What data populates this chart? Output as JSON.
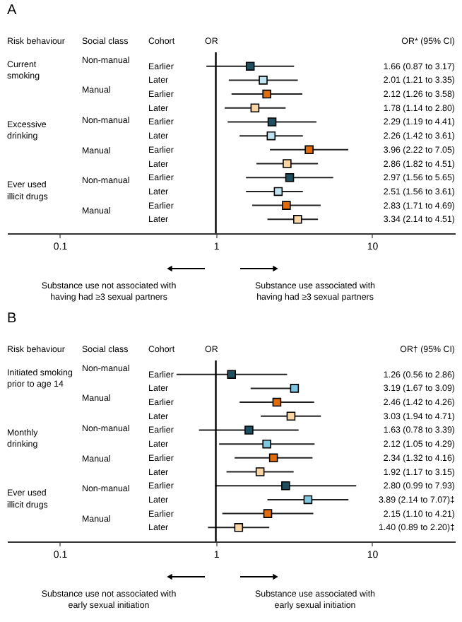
{
  "chart_data": [
    {
      "type": "scatter",
      "title": "A",
      "xlabel": "OR",
      "orientation": "horizontal",
      "log": "x",
      "marker": "square",
      "grid": false,
      "categories": [
        "Earlier",
        "Later",
        "Earlier",
        "Later",
        "Earlier",
        "Later",
        "Earlier",
        "Later",
        "Earlier",
        "Later",
        "Earlier",
        "Later"
      ],
      "values": [
        1.66,
        2.01,
        2.12,
        1.78,
        2.29,
        2.26,
        3.96,
        2.86,
        2.97,
        2.51,
        2.83,
        3.34
      ],
      "errors": [
        [
          0.87,
          3.17
        ],
        [
          1.21,
          3.35
        ],
        [
          1.26,
          3.58
        ],
        [
          1.14,
          2.8
        ],
        [
          1.19,
          4.41
        ],
        [
          1.42,
          3.61
        ],
        [
          2.22,
          7.05
        ],
        [
          1.82,
          4.51
        ],
        [
          1.56,
          5.65
        ],
        [
          1.56,
          3.61
        ],
        [
          1.71,
          4.69
        ],
        [
          2.14,
          4.51
        ]
      ],
      "colors": [
        "#1f4e5f",
        "#bfe3f0",
        "#e36c0a",
        "#fcd5a5",
        "#1f4e5f",
        "#bfe3f0",
        "#e36c0a",
        "#fcd5a5",
        "#1f4e5f",
        "#bfe3f0",
        "#e36c0a",
        "#fcd5a5"
      ],
      "xlim": [
        0.046,
        34
      ],
      "xticks": [
        0.1,
        1,
        10
      ],
      "ref_lines": [
        {
          "axis": "x",
          "value": 1,
          "color": "#000000"
        }
      ],
      "annotations": [
        "Risk behaviour",
        "Social class",
        "Cohort",
        "OR* (95% CI)",
        "Current\nsmoking",
        "Excessive\ndrinking",
        "Ever used\nillicit drugs",
        "Non-manual",
        "Manual",
        "Non-manual",
        "Manual",
        "Non-manual",
        "Manual",
        "Substance use not associated with\nhaving had ≥3 sexual partners",
        "Substance use associated with\nhaving had ≥3 sexual partners",
        "1.66 (0.87 to 3.17)",
        "2.01 (1.21 to 3.35)",
        "2.12 (1.26 to 3.58)",
        "1.78 (1.14 to 2.80)",
        "2.29 (1.19 to 4.41)",
        "2.26 (1.42 to 3.61)",
        "3.96 (2.22 to 7.05)",
        "2.86 (1.82 to 4.51)",
        "2.97 (1.56 to 5.65)",
        "2.51 (1.56 to 3.61)",
        "2.83 (1.71 to 4.69)",
        "3.34 (2.14 to 4.51)"
      ]
    },
    {
      "type": "scatter",
      "title": "B",
      "xlabel": "OR",
      "orientation": "horizontal",
      "log": "x",
      "marker": "square",
      "grid": false,
      "categories": [
        "Earlier",
        "Later",
        "Earlier",
        "Later",
        "Earlier",
        "Later",
        "Earlier",
        "Later",
        "Earlier",
        "Later",
        "Earlier",
        "Later"
      ],
      "values": [
        1.26,
        3.19,
        2.46,
        3.03,
        1.63,
        2.12,
        2.34,
        1.92,
        2.8,
        3.89,
        2.15,
        1.4
      ],
      "errors": [
        [
          0.56,
          2.86
        ],
        [
          1.67,
          3.09
        ],
        [
          1.42,
          4.26
        ],
        [
          1.94,
          4.71
        ],
        [
          0.78,
          3.39
        ],
        [
          1.05,
          4.29
        ],
        [
          1.32,
          4.16
        ],
        [
          1.17,
          3.15
        ],
        [
          0.99,
          7.93
        ],
        [
          2.14,
          7.07
        ],
        [
          1.1,
          4.21
        ],
        [
          0.89,
          2.2
        ]
      ],
      "colors": [
        "#1f4e5f",
        "#7fc6e0",
        "#e36c0a",
        "#fcd5a5",
        "#1f4e5f",
        "#7fc6e0",
        "#e36c0a",
        "#fcd5a5",
        "#1f4e5f",
        "#7fc6e0",
        "#e36c0a",
        "#fcd5a5"
      ],
      "xlim": [
        0.046,
        34
      ],
      "xticks": [
        0.1,
        1,
        10
      ],
      "ref_lines": [
        {
          "axis": "x",
          "value": 1,
          "color": "#000000"
        }
      ],
      "annotations": [
        "Risk behaviour",
        "Social class",
        "Cohort",
        "OR† (95% CI)",
        "Initiated smoking\nprior to age 14",
        "Monthly\ndrinking",
        "Ever used\nillicit drugs",
        "Non-manual",
        "Manual",
        "Non-manual",
        "Manual",
        "Non-manual",
        "Manual",
        "Substance use not associated with\nearly sexual initiation",
        "Substance use associated with\nearly sexual initiation",
        "1.26 (0.56 to 2.86)",
        "3.19 (1.67 to 3.09)",
        "2.46 (1.42 to 4.26)",
        "3.03 (1.94 to 4.71)",
        "1.63 (0.78 to 3.39)",
        "2.12 (1.05 to 4.29)",
        "2.34 (1.32 to 4.16)",
        "1.92 (1.17 to 3.15)",
        "2.80 (0.99 to 7.93)",
        "3.89 (2.14 to 7.07)‡",
        "2.15 (1.10 to 4.21)",
        "1.40 (0.89 to 2.20)‡"
      ]
    }
  ]
}
